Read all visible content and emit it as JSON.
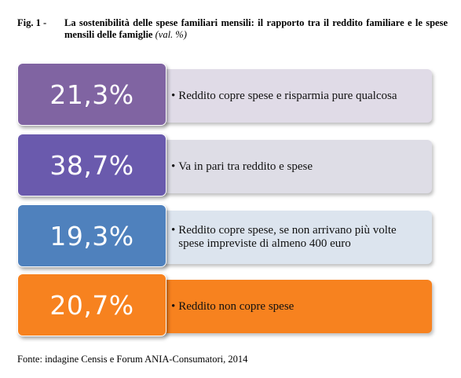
{
  "figure": {
    "label": "Fig. 1 -",
    "title": "La sostenibilità delle spese familiari mensili: il rapporto tra il reddito familiare e le spese mensili delle famiglie",
    "unit": "(val. %)"
  },
  "source": "Fonte: indagine Censis e Forum ANIA-Consumatori, 2014",
  "chart_data": {
    "type": "bar",
    "title": "La sostenibilità delle spese familiari mensili: il rapporto tra il reddito familiare e le spese mensili delle famiglie",
    "unit": "val. %",
    "categories": [
      "Reddito copre spese e risparmia pure qualcosa",
      "Va in pari tra reddito e spese",
      "Reddito copre spese, se non arrivano più volte spese impreviste di almeno 400 euro",
      "Reddito non copre spese"
    ],
    "values": [
      21.3,
      38.7,
      19.3,
      20.7
    ],
    "value_labels": [
      "21,3%",
      "38,7%",
      "19,3%",
      "20,7%"
    ],
    "colors": {
      "tiles": [
        "#8064a2",
        "#6a5aad",
        "#4f81bd",
        "#f7821f"
      ],
      "bars": [
        "#e0dbe7",
        "#dedde6",
        "#dce4ee",
        "#f7821f"
      ]
    }
  }
}
